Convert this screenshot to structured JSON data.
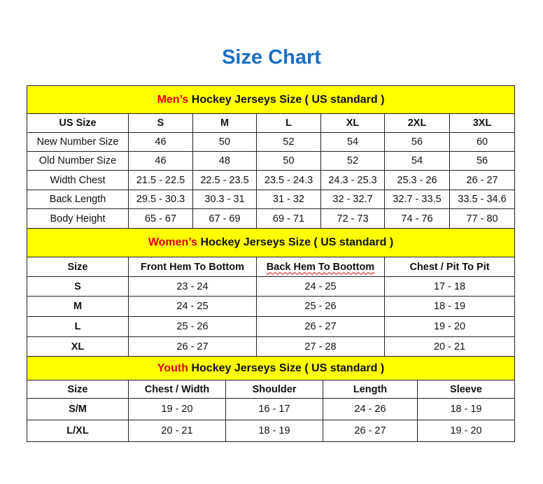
{
  "title": "Size Chart",
  "colors": {
    "title": "#1a6fc0",
    "header_bg": "#ffff00",
    "accent": "#e00000"
  },
  "men": {
    "heading_accent": "Men’s",
    "heading_rest": " Hockey Jerseys Size ( US standard )",
    "columns": [
      "US Size",
      "S",
      "M",
      "L",
      "XL",
      "2XL",
      "3XL"
    ],
    "rows": [
      [
        "New Number Size",
        "46",
        "50",
        "52",
        "54",
        "56",
        "60"
      ],
      [
        "Old Number Size",
        "46",
        "48",
        "50",
        "52",
        "54",
        "56"
      ],
      [
        "Width Chest",
        "21.5 - 22.5",
        "22.5 - 23.5",
        "23.5 - 24.3",
        "24.3 - 25.3",
        "25.3 - 26",
        "26 - 27"
      ],
      [
        "Back Length",
        "29.5 - 30.3",
        "30.3 - 31",
        "31 - 32",
        "32 - 32.7",
        "32.7 - 33.5",
        "33.5 - 34.6"
      ],
      [
        "Body Height",
        "65 - 67",
        "67 - 69",
        "69 - 71",
        "72 - 73",
        "74 - 76",
        "77 - 80"
      ]
    ]
  },
  "women": {
    "heading_accent": "Women’s",
    "heading_rest": " Hockey Jerseys Size ( US standard )",
    "columns": [
      "Size",
      "Front Hem To Bottom",
      "Back Hem To Boottom",
      "Chest / Pit To Pit"
    ],
    "rows": [
      [
        "S",
        "23 - 24",
        "24 - 25",
        "17 - 18"
      ],
      [
        "M",
        "24 - 25",
        "25 - 26",
        "18 - 19"
      ],
      [
        "L",
        "25 - 26",
        "26 - 27",
        "19 - 20"
      ],
      [
        "XL",
        "26 - 27",
        "27 - 28",
        "20 - 21"
      ]
    ]
  },
  "youth": {
    "heading_accent": "Youth",
    "heading_rest": " Hockey Jerseys Size ( US standard )",
    "columns": [
      "Size",
      "Chest / Width",
      "Shoulder",
      "Length",
      "Sleeve"
    ],
    "rows": [
      [
        "S/M",
        "19 - 20",
        "16 - 17",
        "24 - 26",
        "18 - 19"
      ],
      [
        "L/XL",
        "20 - 21",
        "18 - 19",
        "26 - 27",
        "19 - 20"
      ]
    ]
  }
}
